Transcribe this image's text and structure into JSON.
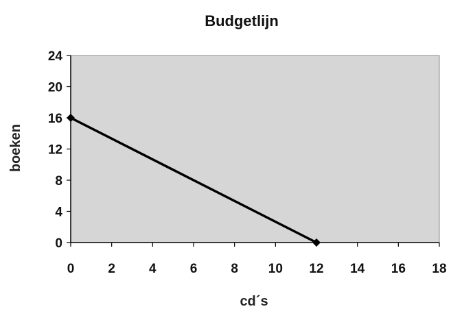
{
  "chart_data": {
    "type": "line",
    "title": "Budgetlijn",
    "xlabel": "cd´s",
    "ylabel": "boeken",
    "xlim": [
      0,
      18
    ],
    "ylim": [
      0,
      24
    ],
    "x_ticks": [
      0,
      2,
      4,
      6,
      8,
      10,
      12,
      14,
      16,
      18
    ],
    "y_ticks": [
      0,
      4,
      8,
      12,
      16,
      20,
      24
    ],
    "grid": false,
    "legend": "none",
    "series": [
      {
        "x": [
          0,
          12
        ],
        "y": [
          16,
          0
        ],
        "markers": true
      }
    ],
    "colors": {
      "plot_area": "#d6d6d6",
      "line": "#000000",
      "axis": "#000000"
    }
  }
}
